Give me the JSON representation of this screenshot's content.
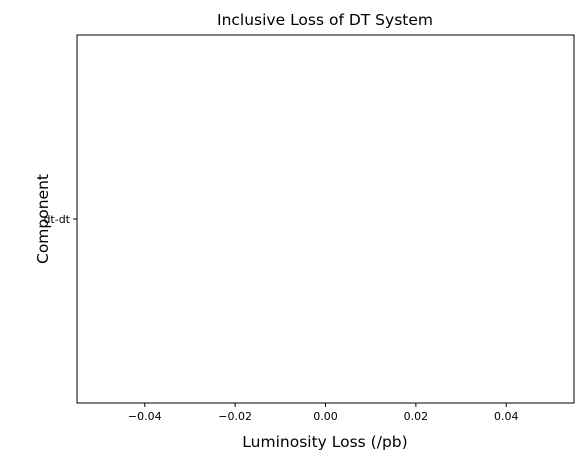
{
  "chart_data": {
    "type": "bar",
    "orientation": "horizontal",
    "title": "Inclusive Loss of DT System",
    "xlabel": "Luminosity Loss (/pb)",
    "ylabel": "Component",
    "categories": [
      "dt-dt"
    ],
    "values": [
      0
    ],
    "xlim": [
      -0.055,
      0.055
    ],
    "xticks": [
      -0.04,
      -0.02,
      0.0,
      0.02,
      0.04
    ],
    "xtick_labels": [
      "−0.04",
      "−0.02",
      "0.00",
      "0.02",
      "0.04"
    ],
    "grid": false,
    "legend": "none"
  }
}
